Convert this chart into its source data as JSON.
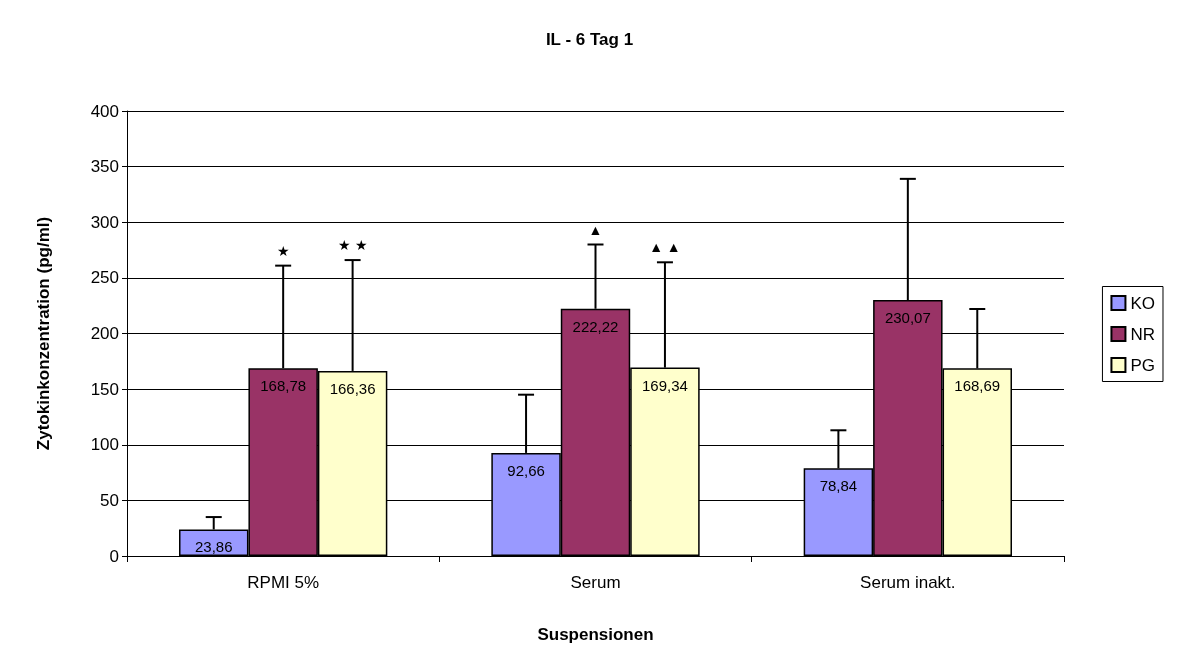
{
  "chart_data": {
    "type": "bar",
    "title": "IL - 6 Tag 1",
    "xlabel": "Suspensionen",
    "ylabel": "Zytokinkonzentration (pg/ml)",
    "categories": [
      "RPMI 5%",
      "Serum",
      "Serum inakt."
    ],
    "series": [
      {
        "name": "KO",
        "color": "#9999ff",
        "values": [
          23.86,
          92.66,
          78.84
        ],
        "value_labels": [
          "23,86",
          "92,66",
          "78,84"
        ],
        "errors": [
          [
            23.86,
            35
          ],
          [
            92.66,
            145
          ],
          [
            78.84,
            113
          ]
        ]
      },
      {
        "name": "NR",
        "color": "#993366",
        "values": [
          168.78,
          222.22,
          230.07
        ],
        "value_labels": [
          "168,78",
          "222,22",
          "230,07"
        ],
        "errors": [
          [
            168.78,
            261
          ],
          [
            222.22,
            280
          ],
          [
            230.07,
            339
          ]
        ]
      },
      {
        "name": "PG",
        "color": "#ffffcc",
        "values": [
          166.36,
          169.34,
          168.69
        ],
        "value_labels": [
          "166,36",
          "169,34",
          "168,69"
        ],
        "errors": [
          [
            166.36,
            266
          ],
          [
            169.34,
            264
          ],
          [
            168.69,
            222
          ]
        ]
      }
    ],
    "annotations": [
      {
        "text": "★",
        "x": "RPMI 5%",
        "y": 261
      },
      "★ ★",
      {
        "text": "▲",
        "x": "Serum",
        "y": 280
      },
      "▲ ▲"
    ],
    "ylim": [
      0,
      400
    ],
    "yticks": [
      0,
      50,
      100,
      150,
      200,
      250,
      300,
      350,
      400
    ],
    "grid": "y",
    "legend": "right"
  }
}
